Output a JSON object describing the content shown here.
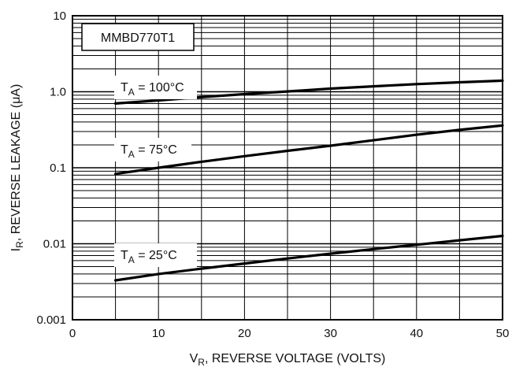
{
  "chart_data": {
    "type": "line",
    "title": "MMBD770T1",
    "xlabel_main": "V",
    "xlabel_sub": "R",
    "xlabel_rest": ", REVERSE VOLTAGE (VOLTS)",
    "ylabel_main": "I",
    "ylabel_sub": "R",
    "ylabel_rest": ", REVERSE LEAKAGE (μA)",
    "xlim": [
      0,
      50
    ],
    "ylim": [
      0.001,
      10
    ],
    "yscale": "log",
    "grid": true,
    "x_ticks": [
      "0",
      "10",
      "20",
      "30",
      "40",
      "50"
    ],
    "y_ticks": [
      "0.001",
      "0.01",
      "0.1",
      "1.0",
      "10"
    ],
    "series": [
      {
        "label_main": "T",
        "label_sub": "A",
        "label_rest": " = 100°C",
        "x": [
          5,
          10,
          15,
          20,
          25,
          30,
          35,
          40,
          45,
          50
        ],
        "y": [
          0.7,
          0.77,
          0.85,
          0.93,
          1.01,
          1.1,
          1.18,
          1.26,
          1.33,
          1.4
        ]
      },
      {
        "label_main": "T",
        "label_sub": "A",
        "label_rest": " = 75°C",
        "x": [
          5,
          10,
          15,
          20,
          25,
          30,
          35,
          40,
          45,
          50
        ],
        "y": [
          0.083,
          0.1,
          0.12,
          0.142,
          0.167,
          0.195,
          0.23,
          0.272,
          0.315,
          0.36
        ]
      },
      {
        "label_main": "T",
        "label_sub": "A",
        "label_rest": " = 25°C",
        "x": [
          5,
          10,
          15,
          20,
          25,
          30,
          35,
          40,
          45,
          50
        ],
        "y": [
          0.0033,
          0.004,
          0.0047,
          0.0055,
          0.0064,
          0.0074,
          0.0085,
          0.0097,
          0.0111,
          0.0127
        ]
      }
    ]
  }
}
